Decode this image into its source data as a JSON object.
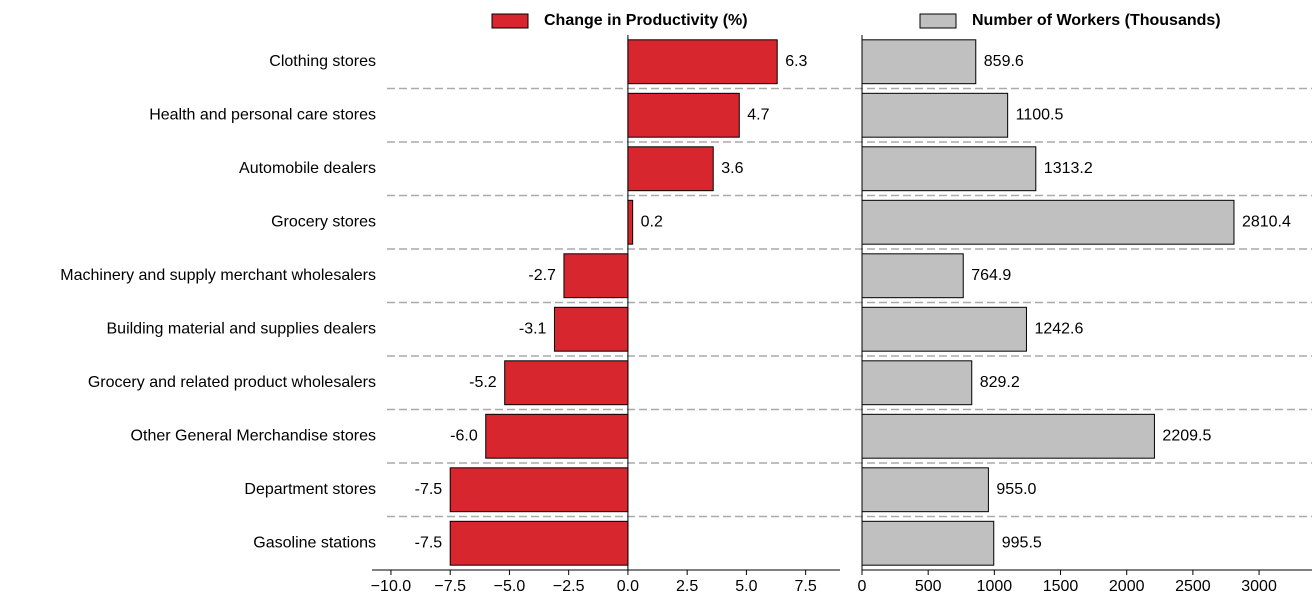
{
  "chart_data": [
    {
      "type": "barh",
      "categories": [
        "Clothing stores",
        "Health and personal care stores",
        "Automobile dealers",
        "Grocery stores",
        "Machinery and supply merchant wholesalers",
        "Building material and supplies dealers",
        "Grocery and related product wholesalers",
        "Other General Merchandise stores",
        "Department stores",
        "Gasoline stations"
      ],
      "series": [
        {
          "name": "Change in Productivity (%)",
          "color": "#d7262e",
          "values": [
            6.3,
            4.7,
            3.6,
            0.2,
            -2.7,
            -3.1,
            -5.2,
            -6.0,
            -7.5,
            -7.5
          ],
          "value_labels": [
            "6.3",
            "4.7",
            "3.6",
            "0.2",
            "-2.7",
            "-3.1",
            "-5.2",
            "-6.0",
            "-7.5",
            "-7.5"
          ]
        }
      ],
      "xlim": [
        -10.8,
        8.95
      ],
      "xticks": [
        {
          "value": -10,
          "label": "−10.0"
        },
        {
          "value": -7.5,
          "label": "−7.5"
        },
        {
          "value": -5,
          "label": "−5.0"
        },
        {
          "value": -2.5,
          "label": "−2.5"
        },
        {
          "value": 0,
          "label": "0.0"
        },
        {
          "value": 2.5,
          "label": "2.5"
        },
        {
          "value": 5,
          "label": "5.0"
        },
        {
          "value": 7.5,
          "label": "7.5"
        }
      ]
    },
    {
      "type": "barh",
      "series": [
        {
          "name": "Number of Workers (Thousands)",
          "color": "#c0c0c0",
          "values": [
            859.6,
            1100.5,
            1313.2,
            2810.4,
            764.9,
            1242.6,
            829.2,
            2209.5,
            955.0,
            995.5
          ],
          "value_labels": [
            "859.6",
            "1100.5",
            "1313.2",
            "2810.4",
            "764.9",
            "1242.6",
            "829.2",
            "2209.5",
            "955.0",
            "995.5"
          ]
        }
      ],
      "xlim": [
        0,
        3400
      ],
      "xticks": [
        0,
        500,
        1000,
        1500,
        2000,
        2500,
        3000
      ]
    }
  ]
}
